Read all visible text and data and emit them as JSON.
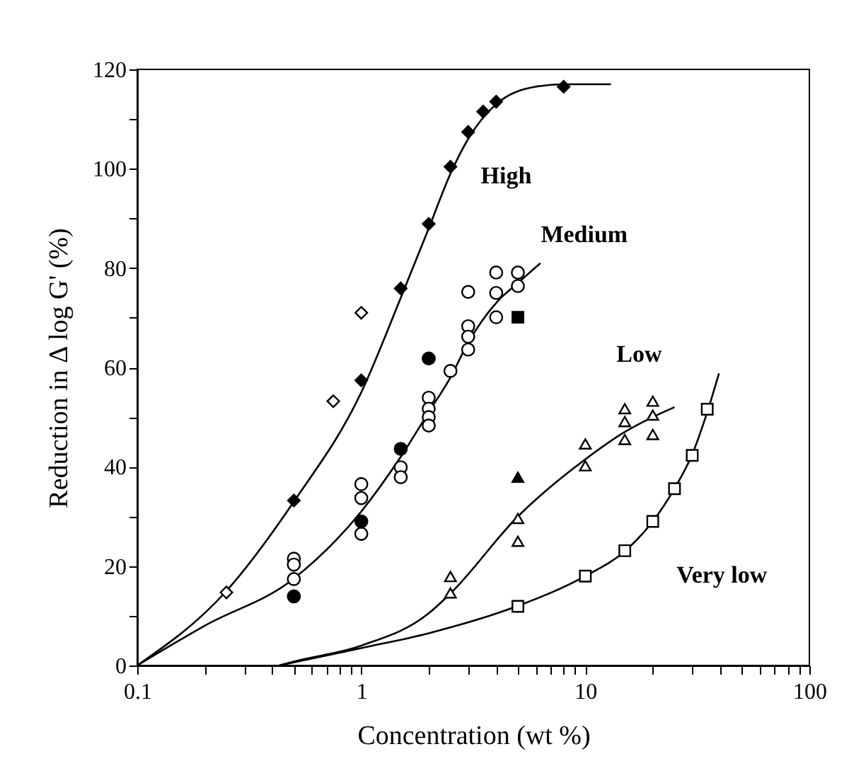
{
  "chart_data": {
    "type": "scatter",
    "xlabel": "Concentration (wt %)",
    "ylabel": "Reduction in Δ log G' (%)",
    "log": "x",
    "grid": false,
    "xlim": [
      0.1,
      100
    ],
    "xticks": [
      0.1,
      {
        "value": 0.2,
        "label": null
      },
      {
        "value": 0.3,
        "label": null
      },
      {
        "value": 0.4,
        "label": null
      },
      {
        "value": 0.5,
        "label": null
      },
      {
        "value": 0.6,
        "label": null
      },
      {
        "value": 0.7,
        "label": null
      },
      {
        "value": 0.8,
        "label": null
      },
      {
        "value": 0.9,
        "label": null
      },
      1,
      {
        "value": 2,
        "label": null
      },
      {
        "value": 3,
        "label": null
      },
      {
        "value": 4,
        "label": null
      },
      {
        "value": 5,
        "label": null
      },
      {
        "value": 6,
        "label": null
      },
      {
        "value": 7,
        "label": null
      },
      {
        "value": 8,
        "label": null
      },
      {
        "value": 9,
        "label": null
      },
      10,
      {
        "value": 20,
        "label": null
      },
      {
        "value": 30,
        "label": null
      },
      {
        "value": 40,
        "label": null
      },
      {
        "value": 50,
        "label": null
      },
      {
        "value": 60,
        "label": null
      },
      {
        "value": 70,
        "label": null
      },
      {
        "value": 80,
        "label": null
      },
      {
        "value": 90,
        "label": null
      },
      100
    ],
    "ylim": [
      0,
      120
    ],
    "yticks": [
      0,
      {
        "value": 10,
        "label": null
      },
      20,
      {
        "value": 30,
        "label": null
      },
      40,
      {
        "value": 50,
        "label": null
      },
      60,
      {
        "value": 70,
        "label": null
      },
      80,
      {
        "value": 90,
        "label": null
      },
      100,
      {
        "value": 110,
        "label": null
      },
      120
    ],
    "series": [
      {
        "name": "High",
        "type": "line",
        "color": "#000000",
        "marker": "none",
        "line_style": "solid",
        "x": [
          0.1,
          0.25,
          0.5,
          1,
          1.5,
          2,
          2.5,
          3,
          4,
          6,
          8,
          13
        ],
        "values": [
          0,
          15,
          33,
          55,
          74,
          88,
          99,
          106,
          113,
          116.5,
          117,
          117
        ]
      },
      {
        "name": "Medium",
        "type": "line",
        "color": "#000000",
        "marker": "none",
        "line_style": "solid",
        "x": [
          0.1,
          0.2,
          0.5,
          1,
          1.5,
          2,
          2.5,
          3,
          4,
          5,
          6.3
        ],
        "values": [
          0,
          8,
          17.5,
          31,
          42,
          51,
          58,
          65,
          73,
          77,
          81
        ]
      },
      {
        "name": "Low",
        "type": "line",
        "color": "#000000",
        "marker": "none",
        "line_style": "solid",
        "x": [
          0.43,
          0.5,
          1,
          2,
          2.5,
          5,
          10,
          15,
          20,
          25
        ],
        "values": [
          0,
          0.8,
          4,
          10.5,
          14.5,
          30,
          41.5,
          47,
          50,
          52
        ]
      },
      {
        "name": "Very low",
        "type": "line",
        "color": "#000000",
        "marker": "none",
        "line_style": "solid",
        "x": [
          0.43,
          1,
          2,
          5,
          10,
          15,
          20,
          25,
          30,
          35,
          39.5
        ],
        "values": [
          0,
          3.5,
          6.5,
          12,
          18,
          23,
          29,
          35.6,
          42.5,
          51,
          58.8
        ]
      },
      {
        "marker": "diamond",
        "color": "#000000",
        "x": [
          0.5,
          1,
          1.5,
          2,
          2.5,
          3,
          3.5,
          4,
          8
        ],
        "values": [
          33.2,
          57.4,
          75.9,
          88.9,
          100.4,
          107.4,
          111.5,
          113.5,
          116.5
        ]
      },
      {
        "marker": "diamond",
        "color": "#ffffff",
        "x": [
          0.25,
          0.75,
          1
        ],
        "values": [
          14.7,
          53.2,
          71.0
        ]
      },
      {
        "marker": "circle",
        "color": "#ffffff",
        "x": [
          0.5,
          0.5,
          0.5,
          1,
          1,
          1,
          1.5,
          1.5,
          2,
          2,
          2,
          2,
          2.5,
          3,
          3,
          3,
          3,
          4,
          4,
          4,
          5,
          5
        ],
        "values": [
          21.5,
          20.3,
          17.4,
          36.5,
          33.7,
          26.5,
          39.9,
          37.9,
          53.9,
          51.7,
          50.0,
          48.3,
          59.3,
          75.2,
          68.3,
          66.2,
          63.6,
          79.1,
          75.0,
          70.1,
          79.1,
          76.4
        ]
      },
      {
        "marker": "circle",
        "color": "#000000",
        "x": [
          0.5,
          1,
          1.5,
          2
        ],
        "values": [
          13.9,
          29.0,
          43.6,
          61.8
        ]
      },
      {
        "marker": "square",
        "color": "#000000",
        "x": [
          5
        ],
        "values": [
          70.1
        ]
      },
      {
        "marker": "triangle",
        "color": "#ffffff",
        "x": [
          2.5,
          2.5,
          5,
          5,
          10,
          10,
          15,
          15,
          15,
          20,
          20,
          20
        ],
        "values": [
          17.9,
          14.6,
          29.6,
          25.0,
          44.6,
          40.2,
          51.7,
          49.1,
          45.5,
          53.2,
          50.4,
          46.5
        ]
      },
      {
        "marker": "triangle",
        "color": "#000000",
        "x": [
          5
        ],
        "values": [
          37.9
        ]
      },
      {
        "marker": "square",
        "color": "#ffffff",
        "x": [
          5,
          10,
          15,
          20,
          25,
          30,
          35
        ],
        "values": [
          11.9,
          18.0,
          23.1,
          29.0,
          35.6,
          42.3,
          51.6
        ]
      }
    ]
  }
}
